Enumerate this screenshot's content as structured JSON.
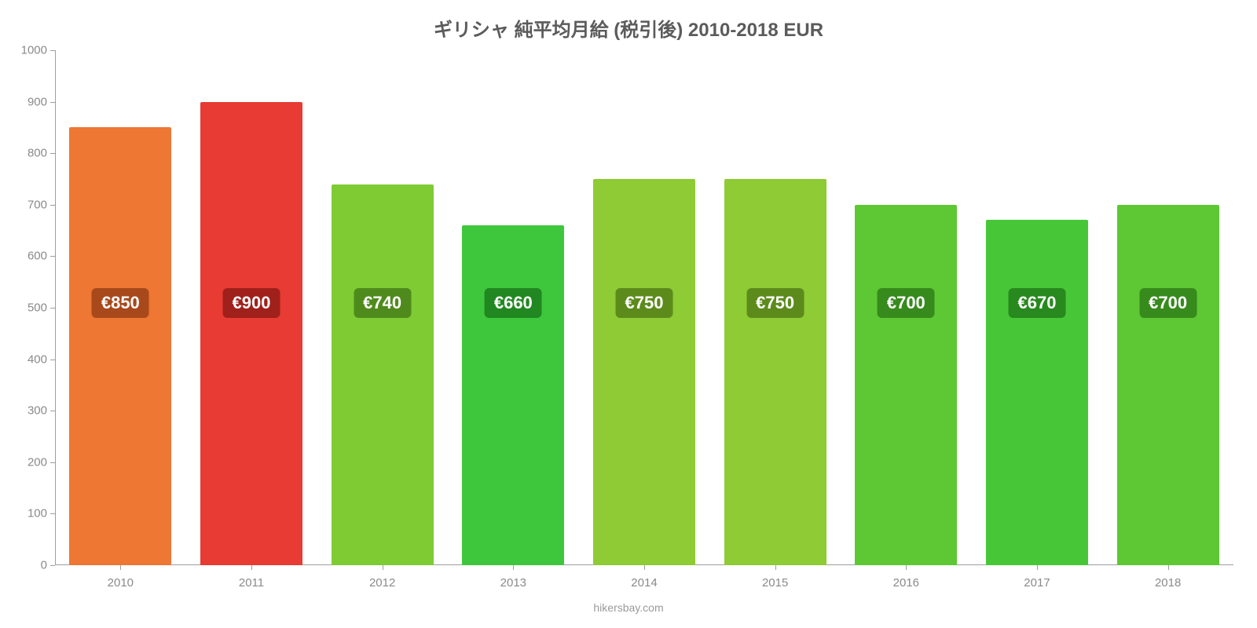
{
  "chart": {
    "type": "bar",
    "title": "ギリシャ 純平均月給 (税引後) 2010-2018 EUR",
    "title_fontsize": 24,
    "title_color": "#5b5b5b",
    "attribution": "hikersbay.com",
    "attribution_fontsize": 14,
    "attribution_color": "#9a9a9a",
    "background_color": "#ffffff",
    "axis_color": "#9e9e9e",
    "tick_label_color": "#8a8a8a",
    "tick_label_fontsize": 15,
    "y": {
      "min": 0,
      "max": 1000,
      "step": 100,
      "ticks": [
        0,
        100,
        200,
        300,
        400,
        500,
        600,
        700,
        800,
        900,
        1000
      ]
    },
    "x_categories": [
      "2010",
      "2011",
      "2012",
      "2013",
      "2014",
      "2015",
      "2016",
      "2017",
      "2018"
    ],
    "bar_width_ratio": 0.78,
    "bar_label_fontsize": 22,
    "bar_label_text_color": "#ffffff",
    "bar_label_radius": 6,
    "bars": [
      {
        "year": "2010",
        "value": 850,
        "label": "€850",
        "fill": "#ed7733",
        "label_bg": "#a8491b"
      },
      {
        "year": "2011",
        "value": 900,
        "label": "€900",
        "fill": "#e73b33",
        "label_bg": "#a0201b"
      },
      {
        "year": "2012",
        "value": 740,
        "label": "€740",
        "fill": "#7ecb34",
        "label_bg": "#4f8b1c"
      },
      {
        "year": "2013",
        "value": 660,
        "label": "€660",
        "fill": "#3ec73d",
        "label_bg": "#218821"
      },
      {
        "year": "2014",
        "value": 750,
        "label": "€750",
        "fill": "#8ecb34",
        "label_bg": "#5c8b1c"
      },
      {
        "year": "2015",
        "value": 750,
        "label": "€750",
        "fill": "#8ecb34",
        "label_bg": "#5c8b1c"
      },
      {
        "year": "2016",
        "value": 700,
        "label": "€700",
        "fill": "#5dc834",
        "label_bg": "#378a1c"
      },
      {
        "year": "2017",
        "value": 670,
        "label": "€670",
        "fill": "#47c737",
        "label_bg": "#28891e"
      },
      {
        "year": "2018",
        "value": 700,
        "label": "€700",
        "fill": "#5dc834",
        "label_bg": "#378a1c"
      }
    ]
  }
}
